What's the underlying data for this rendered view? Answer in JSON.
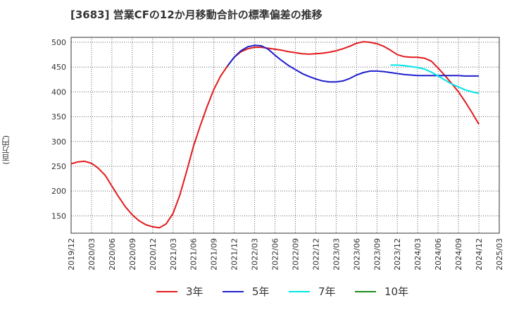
{
  "title": "[3683]  営業CFの12か月移動合計の標準偏差の推移",
  "chart_data": {
    "type": "line",
    "title": "[3683]  営業CFの12か月移動合計の標準偏差の推移",
    "xlabel": "",
    "ylabel": "(百万円)",
    "ylim": [
      115,
      510
    ],
    "yticks": [
      150,
      200,
      250,
      300,
      350,
      400,
      450,
      500
    ],
    "x_start": "2019-12",
    "x_end": "2025-03",
    "xticks": [
      "2019/12",
      "2020/03",
      "2020/06",
      "2020/09",
      "2020/12",
      "2021/03",
      "2021/06",
      "2021/09",
      "2021/12",
      "2022/03",
      "2022/06",
      "2022/09",
      "2022/12",
      "2023/03",
      "2023/06",
      "2023/09",
      "2023/12",
      "2024/03",
      "2024/06",
      "2024/09",
      "2024/12",
      "2025/03"
    ],
    "grid": true,
    "legend_position": "bottom",
    "series": [
      {
        "name": "3年",
        "color": "#e31a1c",
        "points": [
          [
            "2019-12",
            255
          ],
          [
            "2020-01",
            259
          ],
          [
            "2020-02",
            260
          ],
          [
            "2020-03",
            256
          ],
          [
            "2020-04",
            246
          ],
          [
            "2020-05",
            232
          ],
          [
            "2020-06",
            210
          ],
          [
            "2020-07",
            188
          ],
          [
            "2020-08",
            168
          ],
          [
            "2020-09",
            152
          ],
          [
            "2020-10",
            140
          ],
          [
            "2020-11",
            132
          ],
          [
            "2020-12",
            128
          ],
          [
            "2021-01",
            126
          ],
          [
            "2021-02",
            134
          ],
          [
            "2021-03",
            155
          ],
          [
            "2021-04",
            192
          ],
          [
            "2021-05",
            240
          ],
          [
            "2021-06",
            290
          ],
          [
            "2021-07",
            332
          ],
          [
            "2021-08",
            370
          ],
          [
            "2021-09",
            405
          ],
          [
            "2021-10",
            432
          ],
          [
            "2021-11",
            452
          ],
          [
            "2021-12",
            470
          ],
          [
            "2022-01",
            481
          ],
          [
            "2022-02",
            487
          ],
          [
            "2022-03",
            490
          ],
          [
            "2022-04",
            490
          ],
          [
            "2022-05",
            488
          ],
          [
            "2022-06",
            486
          ],
          [
            "2022-07",
            484
          ],
          [
            "2022-08",
            481
          ],
          [
            "2022-09",
            479
          ],
          [
            "2022-10",
            477
          ],
          [
            "2022-11",
            476
          ],
          [
            "2022-12",
            477
          ],
          [
            "2023-01",
            478
          ],
          [
            "2023-02",
            480
          ],
          [
            "2023-03",
            483
          ],
          [
            "2023-04",
            487
          ],
          [
            "2023-05",
            492
          ],
          [
            "2023-06",
            498
          ],
          [
            "2023-07",
            501
          ],
          [
            "2023-08",
            500
          ],
          [
            "2023-09",
            497
          ],
          [
            "2023-10",
            492
          ],
          [
            "2023-11",
            484
          ],
          [
            "2023-12",
            475
          ],
          [
            "2024-01",
            471
          ],
          [
            "2024-02",
            470
          ],
          [
            "2024-03",
            470
          ],
          [
            "2024-04",
            468
          ],
          [
            "2024-05",
            462
          ],
          [
            "2024-06",
            448
          ],
          [
            "2024-07",
            433
          ],
          [
            "2024-08",
            417
          ],
          [
            "2024-09",
            400
          ],
          [
            "2024-10",
            380
          ],
          [
            "2024-11",
            358
          ],
          [
            "2024-12",
            335
          ]
        ]
      },
      {
        "name": "5年",
        "color": "#1f1fcc",
        "points": [
          [
            "2021-11",
            452
          ],
          [
            "2021-12",
            470
          ],
          [
            "2022-01",
            483
          ],
          [
            "2022-02",
            491
          ],
          [
            "2022-03",
            494
          ],
          [
            "2022-04",
            493
          ],
          [
            "2022-05",
            486
          ],
          [
            "2022-06",
            474
          ],
          [
            "2022-07",
            463
          ],
          [
            "2022-08",
            453
          ],
          [
            "2022-09",
            445
          ],
          [
            "2022-10",
            437
          ],
          [
            "2022-11",
            431
          ],
          [
            "2022-12",
            426
          ],
          [
            "2023-01",
            422
          ],
          [
            "2023-02",
            420
          ],
          [
            "2023-03",
            420
          ],
          [
            "2023-04",
            422
          ],
          [
            "2023-05",
            427
          ],
          [
            "2023-06",
            434
          ],
          [
            "2023-07",
            439
          ],
          [
            "2023-08",
            442
          ],
          [
            "2023-09",
            442
          ],
          [
            "2023-10",
            441
          ],
          [
            "2023-11",
            439
          ],
          [
            "2023-12",
            437
          ],
          [
            "2024-01",
            435
          ],
          [
            "2024-02",
            434
          ],
          [
            "2024-03",
            433
          ],
          [
            "2024-04",
            433
          ],
          [
            "2024-05",
            433
          ],
          [
            "2024-06",
            433
          ],
          [
            "2024-07",
            433
          ],
          [
            "2024-08",
            433
          ],
          [
            "2024-09",
            433
          ],
          [
            "2024-10",
            432
          ],
          [
            "2024-11",
            432
          ],
          [
            "2024-12",
            432
          ]
        ]
      },
      {
        "name": "7年",
        "color": "#00e5e5",
        "points": [
          [
            "2023-11",
            454
          ],
          [
            "2023-12",
            454
          ],
          [
            "2024-01",
            453
          ],
          [
            "2024-02",
            451
          ],
          [
            "2024-03",
            449
          ],
          [
            "2024-04",
            446
          ],
          [
            "2024-05",
            440
          ],
          [
            "2024-06",
            432
          ],
          [
            "2024-07",
            424
          ],
          [
            "2024-08",
            416
          ],
          [
            "2024-09",
            410
          ],
          [
            "2024-10",
            404
          ],
          [
            "2024-11",
            400
          ],
          [
            "2024-12",
            397
          ]
        ]
      },
      {
        "name": "10年",
        "color": "#1a8c1a",
        "points": []
      }
    ]
  }
}
